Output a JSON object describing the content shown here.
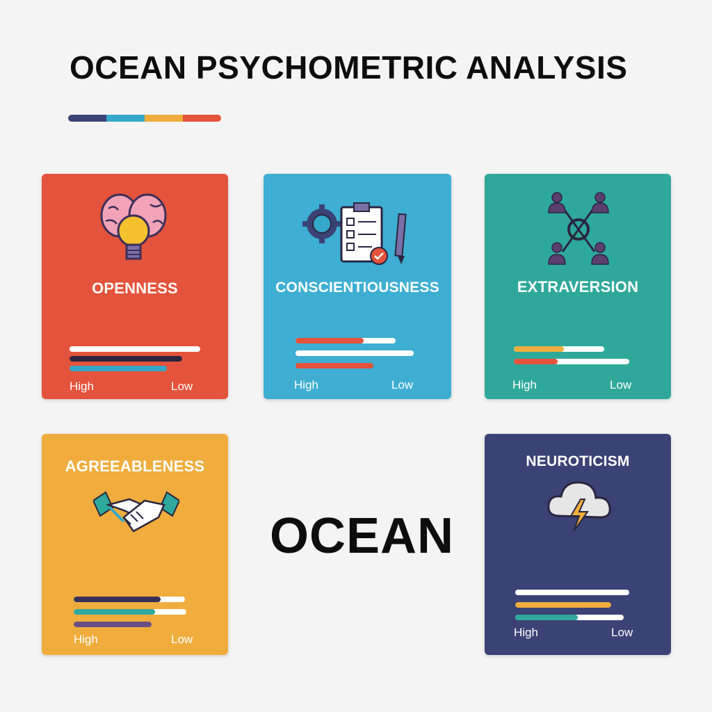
{
  "title": "OCEAN PSYCHOMETRIC ANALYSIS",
  "center_word": "OCEAN",
  "accent_colors": [
    "#3b4275",
    "#35a8c9",
    "#f0ad3d",
    "#e4533b"
  ],
  "cards": {
    "openness": {
      "label": "OPENNESS",
      "bg": "#e4533b",
      "icon": "brain-lightbulb-icon",
      "high": "High",
      "low": "Low",
      "bars": [
        {
          "color": "#ffffff",
          "fill": 1.0
        },
        {
          "color": "#2a2540",
          "fill": 0.85
        },
        {
          "color": "#35a8c9",
          "fill": 0.75
        }
      ]
    },
    "conscientiousness": {
      "label": "CONSCIENTIOUSNESS",
      "bg": "#3eaed3",
      "icon": "checklist-gear-pen-icon",
      "high": "High",
      "low": "Low",
      "bars": [
        {
          "color": "#e4533b",
          "fill": 0.68
        },
        {
          "color": "#ffffff",
          "fill": 1.0
        },
        {
          "color": "#e4533b",
          "fill": 0.68
        }
      ]
    },
    "extraversion": {
      "label": "EXTRAVERSION",
      "bg": "#2fa89c",
      "icon": "people-network-icon",
      "high": "High",
      "low": "Low",
      "bars": [
        {
          "color": "#f0ad3d",
          "fill": 0.45
        },
        {
          "color": "#e4533b",
          "fill": 0.38
        }
      ]
    },
    "agreeableness": {
      "label": "AGREEABLENESS",
      "bg": "#f0ad3d",
      "icon": "handshake-icon",
      "high": "High",
      "low": "Low",
      "bars": [
        {
          "color": "#3b2f5a",
          "fill": 0.78
        },
        {
          "color": "#2fa89c",
          "fill": 0.72
        },
        {
          "color": "#6a4f86",
          "fill": 0.72
        }
      ]
    },
    "neuroticism": {
      "label": "NEUROTICISM",
      "bg": "#3b4275",
      "icon": "storm-cloud-icon",
      "high": "High",
      "low": "Low",
      "bars": [
        {
          "color": "#ffffff",
          "fill": 1.0
        },
        {
          "color": "#f0ad3d",
          "fill": 0.85
        },
        {
          "color": "#2fa89c",
          "fill": 0.58
        }
      ]
    }
  }
}
